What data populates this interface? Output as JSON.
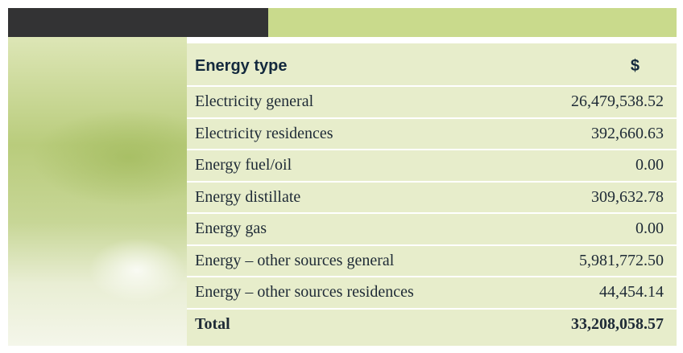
{
  "table": {
    "columns": [
      "Energy type",
      "$"
    ],
    "rows": [
      [
        "Electricity general",
        "26,479,538.52"
      ],
      [
        "Electricity residences",
        "392,660.63"
      ],
      [
        "Energy fuel/oil",
        "0.00"
      ],
      [
        "Energy distillate",
        "309,632.78"
      ],
      [
        "Energy gas",
        "0.00"
      ],
      [
        "Energy – other sources general",
        "5,981,772.50"
      ],
      [
        "Energy – other sources residences",
        "44,454.14"
      ]
    ],
    "total": [
      "Total",
      "33,208,058.57"
    ]
  }
}
